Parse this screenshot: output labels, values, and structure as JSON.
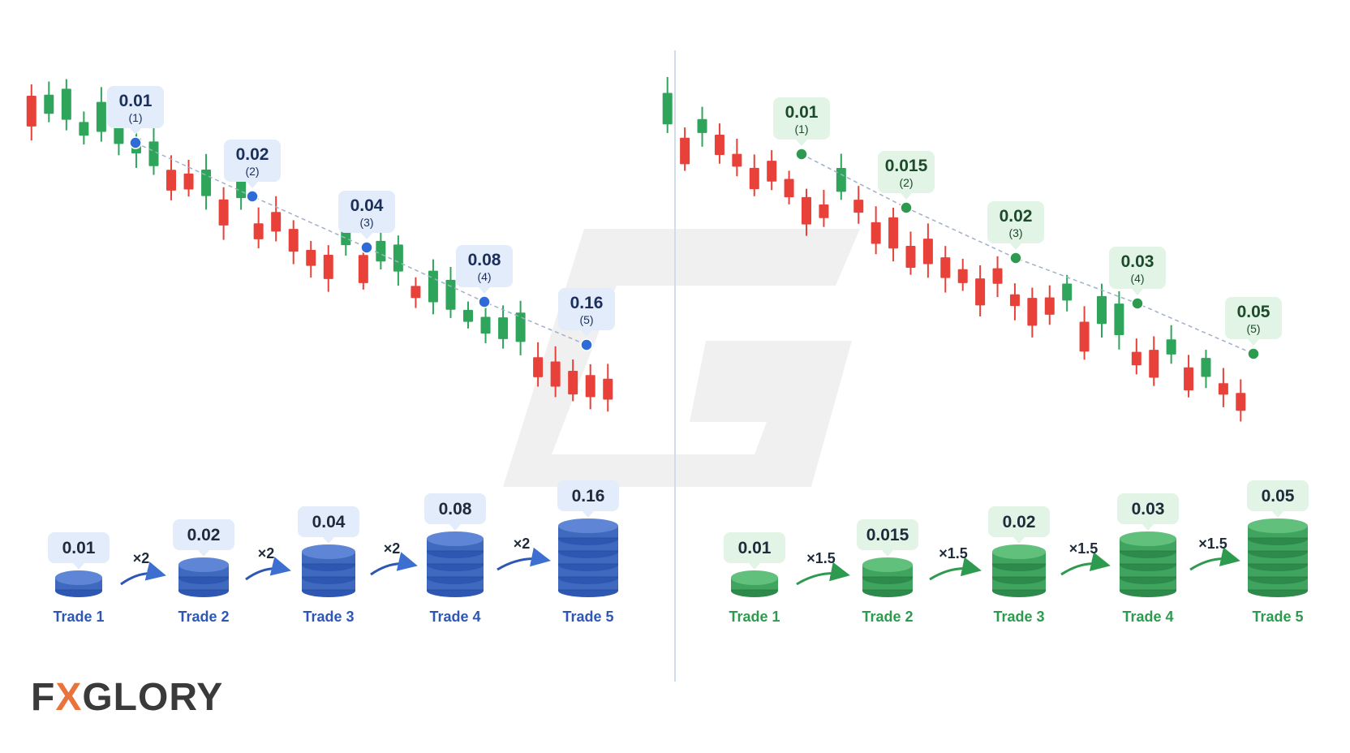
{
  "left_panel": {
    "accent": "#2e57b3",
    "accent_light": "#e3ecfb",
    "multiplier": "×2",
    "chart_labels": [
      {
        "value": "0.01",
        "index": "(1)"
      },
      {
        "value": "0.02",
        "index": "(2)"
      },
      {
        "value": "0.04",
        "index": "(3)"
      },
      {
        "value": "0.08",
        "index": "(4)"
      },
      {
        "value": "0.16",
        "index": "(5)"
      }
    ],
    "trades": [
      {
        "label": "Trade 1",
        "lot": "0.01",
        "disks": 1
      },
      {
        "label": "Trade 2",
        "lot": "0.02",
        "disks": 2
      },
      {
        "label": "Trade 3",
        "lot": "0.04",
        "disks": 3
      },
      {
        "label": "Trade 4",
        "lot": "0.08",
        "disks": 4
      },
      {
        "label": "Trade 5",
        "lot": "0.16",
        "disks": 5
      }
    ]
  },
  "right_panel": {
    "accent": "#2e9a4f",
    "accent_light": "#e2f4e6",
    "multiplier": "×1.5",
    "chart_labels": [
      {
        "value": "0.01",
        "index": "(1)"
      },
      {
        "value": "0.015",
        "index": "(2)"
      },
      {
        "value": "0.02",
        "index": "(3)"
      },
      {
        "value": "0.03",
        "index": "(4)"
      },
      {
        "value": "0.05",
        "index": "(5)"
      }
    ],
    "trades": [
      {
        "label": "Trade 1",
        "lot": "0.01",
        "disks": 1
      },
      {
        "label": "Trade 2",
        "lot": "0.015",
        "disks": 2
      },
      {
        "label": "Trade 3",
        "lot": "0.02",
        "disks": 3
      },
      {
        "label": "Trade 4",
        "lot": "0.03",
        "disks": 4
      },
      {
        "label": "Trade 5",
        "lot": "0.05",
        "disks": 5
      }
    ]
  },
  "colors": {
    "bull": "#2ea55a",
    "bear": "#e8413a",
    "divider": "#cfdcea"
  },
  "logo": {
    "text_a": "F",
    "text_x": "X",
    "text_b": "GLORY"
  }
}
